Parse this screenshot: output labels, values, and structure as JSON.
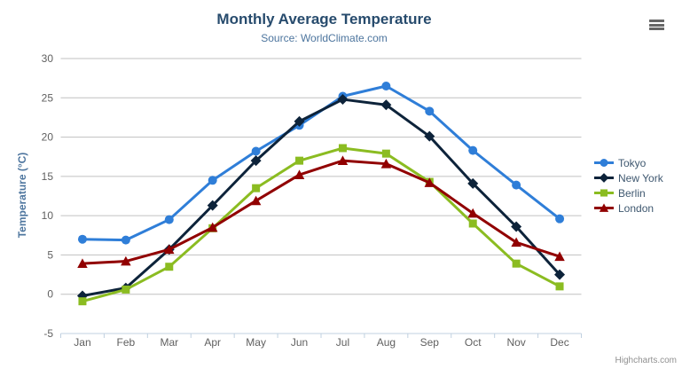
{
  "chart_data": {
    "type": "line",
    "title": "Monthly Average Temperature",
    "subtitle": "Source: WorldClimate.com",
    "categories": [
      "Jan",
      "Feb",
      "Mar",
      "Apr",
      "May",
      "Jun",
      "Jul",
      "Aug",
      "Sep",
      "Oct",
      "Nov",
      "Dec"
    ],
    "xlabel": "",
    "ylabel": "Temperature (°C)",
    "ylim": [
      -5,
      30
    ],
    "yticks": [
      -5,
      0,
      5,
      10,
      15,
      20,
      25,
      30
    ],
    "grid": true,
    "legend_position": "right",
    "series": [
      {
        "name": "Tokyo",
        "color": "#2f7ed8",
        "marker": "circle",
        "values": [
          7.0,
          6.9,
          9.5,
          14.5,
          18.2,
          21.5,
          25.2,
          26.5,
          23.3,
          18.3,
          13.9,
          9.6
        ]
      },
      {
        "name": "New York",
        "color": "#0d233a",
        "marker": "diamond",
        "values": [
          -0.2,
          0.8,
          5.7,
          11.3,
          17.0,
          22.0,
          24.8,
          24.1,
          20.1,
          14.1,
          8.6,
          2.5
        ]
      },
      {
        "name": "Berlin",
        "color": "#8bbc21",
        "marker": "square",
        "values": [
          -0.9,
          0.6,
          3.5,
          8.4,
          13.5,
          17.0,
          18.6,
          17.9,
          14.3,
          9.0,
          3.9,
          1.0
        ]
      },
      {
        "name": "London",
        "color": "#910000",
        "marker": "triangle",
        "values": [
          3.9,
          4.2,
          5.7,
          8.5,
          11.9,
          15.2,
          17.0,
          16.6,
          14.2,
          10.3,
          6.6,
          4.8
        ]
      }
    ],
    "credits": "Highcharts.com",
    "colors": {
      "title": "#274b6d",
      "subtitle": "#4d759e",
      "axis_title": "#4d759e",
      "axis_label": "#606060",
      "grid_line": "#c0c0c0",
      "axis_line": "#c0d0e0",
      "legend_text": "#3e576f",
      "credits": "#909090",
      "burger": "#666666",
      "background": "#ffffff"
    }
  }
}
